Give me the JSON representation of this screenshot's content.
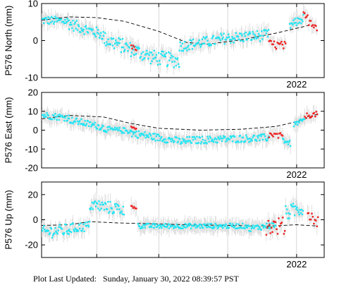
{
  "footer": {
    "label": "Plot Last Updated:",
    "value": "Sunday, January 30, 2022 08:39:57 PST"
  },
  "colors": {
    "cyan": "#22e5f2",
    "red": "#ee2020",
    "error_bar": "#d9d9d9",
    "trend": "#000000"
  },
  "chart_data": [
    {
      "type": "scatter",
      "ylabel": "P576 North (mm)",
      "ylim": [
        -10,
        10
      ],
      "yticks": [
        -10,
        0,
        10
      ],
      "xrange": [
        2020.15,
        2022.2
      ],
      "xtick_labels": [
        {
          "x": 2022.0,
          "label": "2022"
        }
      ],
      "x_gridlines": [
        2020.55,
        2021.0,
        2021.5,
        2022.0
      ],
      "trend": [
        [
          2020.15,
          5.5
        ],
        [
          2020.35,
          6.4
        ],
        [
          2020.55,
          6.2
        ],
        [
          2020.75,
          5.2
        ],
        [
          2021.0,
          2.5
        ],
        [
          2021.2,
          -0.5
        ],
        [
          2021.35,
          -1.0
        ],
        [
          2021.6,
          0.2
        ],
        [
          2021.85,
          2.0
        ],
        [
          2022.1,
          4.2
        ]
      ],
      "cyan_segments": [
        {
          "from": 2020.15,
          "to": 2020.35,
          "center": [
            5.5,
            5.2
          ],
          "spread": 1.2
        },
        {
          "from": 2020.35,
          "to": 2020.6,
          "center": [
            4.5,
            1.5
          ],
          "spread": 1.5
        },
        {
          "from": 2020.6,
          "to": 2020.95,
          "center": [
            0.5,
            -4.5
          ],
          "spread": 2.0
        },
        {
          "from": 2020.95,
          "to": 2021.15,
          "center": [
            -4.5,
            -5.5
          ],
          "spread": 2.0
        },
        {
          "from": 2021.15,
          "to": 2021.45,
          "center": [
            -1.5,
            0.2
          ],
          "spread": 1.5
        },
        {
          "from": 2021.45,
          "to": 2021.8,
          "center": [
            0.5,
            1.5
          ],
          "spread": 1.5
        },
        {
          "from": 2021.95,
          "to": 2022.05,
          "center": [
            4.0,
            6.0
          ],
          "spread": 1.2
        }
      ],
      "red_segments": [
        {
          "from": 2020.8,
          "to": 2020.84,
          "center": [
            -1.5,
            -2.5
          ],
          "spread": 0.6
        },
        {
          "from": 2021.8,
          "to": 2021.92,
          "center": [
            -1.0,
            -1.5
          ],
          "spread": 1.2
        },
        {
          "from": 2022.05,
          "to": 2022.15,
          "center": [
            6.5,
            4.0
          ],
          "spread": 1.4
        }
      ]
    },
    {
      "type": "scatter",
      "ylabel": "P576 East (mm)",
      "ylim": [
        -20,
        20
      ],
      "yticks": [
        -20,
        -10,
        0,
        10,
        20
      ],
      "xrange": [
        2020.15,
        2022.2
      ],
      "xtick_labels": [
        {
          "x": 2022.0,
          "label": "2022"
        }
      ],
      "x_gridlines": [
        2020.55,
        2021.0,
        2021.5,
        2022.0
      ],
      "trend": [
        [
          2020.15,
          6.0
        ],
        [
          2020.35,
          7.8
        ],
        [
          2020.6,
          7.0
        ],
        [
          2020.8,
          3.5
        ],
        [
          2021.0,
          1.0
        ],
        [
          2021.3,
          0.0
        ],
        [
          2021.6,
          0.5
        ],
        [
          2021.85,
          2.0
        ],
        [
          2022.0,
          4.5
        ],
        [
          2022.15,
          8.5
        ]
      ],
      "cyan_segments": [
        {
          "from": 2020.15,
          "to": 2020.35,
          "center": [
            8.0,
            6.5
          ],
          "spread": 1.8
        },
        {
          "from": 2020.35,
          "to": 2020.6,
          "center": [
            5.5,
            1.5
          ],
          "spread": 1.8
        },
        {
          "from": 2020.6,
          "to": 2020.8,
          "center": [
            0.5,
            -0.5
          ],
          "spread": 1.5
        },
        {
          "from": 2020.8,
          "to": 2021.2,
          "center": [
            -1.5,
            -6.5
          ],
          "spread": 2.0
        },
        {
          "from": 2021.2,
          "to": 2021.6,
          "center": [
            -5.5,
            -4.5
          ],
          "spread": 2.0
        },
        {
          "from": 2021.6,
          "to": 2021.8,
          "center": [
            -4.5,
            -4.0
          ],
          "spread": 2.0
        },
        {
          "from": 2021.9,
          "to": 2021.96,
          "center": [
            -5.0,
            -7.5
          ],
          "spread": 1.5
        },
        {
          "from": 2021.98,
          "to": 2022.06,
          "center": [
            3.0,
            5.5
          ],
          "spread": 1.2
        }
      ],
      "red_segments": [
        {
          "from": 2020.8,
          "to": 2020.84,
          "center": [
            1.5,
            0.5
          ],
          "spread": 0.6
        },
        {
          "from": 2021.8,
          "to": 2021.9,
          "center": [
            -2.5,
            -3.5
          ],
          "spread": 1.8
        },
        {
          "from": 2022.06,
          "to": 2022.15,
          "center": [
            7.5,
            8.5
          ],
          "spread": 1.4
        }
      ]
    },
    {
      "type": "scatter",
      "ylabel": "P576 Up (mm)",
      "ylim": [
        -30,
        30
      ],
      "yticks": [
        -20,
        0,
        20
      ],
      "xrange": [
        2020.15,
        2022.2
      ],
      "xtick_labels": [
        {
          "x": 2022.0,
          "label": "2022"
        }
      ],
      "x_gridlines": [
        2020.55,
        2021.0,
        2021.5,
        2022.0
      ],
      "trend": [
        [
          2020.15,
          -4.5
        ],
        [
          2020.35,
          -4.0
        ],
        [
          2020.5,
          -1.5
        ],
        [
          2020.7,
          -2.5
        ],
        [
          2020.9,
          -3.0
        ],
        [
          2021.2,
          -4.0
        ],
        [
          2021.5,
          -4.5
        ],
        [
          2021.8,
          -5.0
        ],
        [
          2022.0,
          -4.0
        ],
        [
          2022.15,
          -5.0
        ]
      ],
      "cyan_segments": [
        {
          "from": 2020.15,
          "to": 2020.35,
          "center": [
            -10.0,
            -8.0
          ],
          "spread": 5.0
        },
        {
          "from": 2020.35,
          "to": 2020.5,
          "center": [
            -7.0,
            -5.0
          ],
          "spread": 4.0
        },
        {
          "from": 2020.5,
          "to": 2020.75,
          "center": [
            12.0,
            8.0
          ],
          "spread": 5.0
        },
        {
          "from": 2020.85,
          "to": 2021.3,
          "center": [
            -5.0,
            -5.0
          ],
          "spread": 2.0
        },
        {
          "from": 2021.3,
          "to": 2021.65,
          "center": [
            -5.0,
            -5.0
          ],
          "spread": 2.0
        },
        {
          "from": 2021.65,
          "to": 2021.85,
          "center": [
            -7.0,
            -4.0
          ],
          "spread": 2.5
        },
        {
          "from": 2021.92,
          "to": 2022.05,
          "center": [
            5.0,
            10.0
          ],
          "spread": 6.0
        }
      ],
      "red_segments": [
        {
          "from": 2020.8,
          "to": 2020.84,
          "center": [
            11.0,
            9.0
          ],
          "spread": 1.0
        },
        {
          "from": 2021.78,
          "to": 2021.92,
          "center": [
            -5.0,
            -5.0
          ],
          "spread": 7.0
        },
        {
          "from": 2022.08,
          "to": 2022.16,
          "center": [
            5.0,
            -2.0
          ],
          "spread": 5.0
        }
      ]
    }
  ]
}
